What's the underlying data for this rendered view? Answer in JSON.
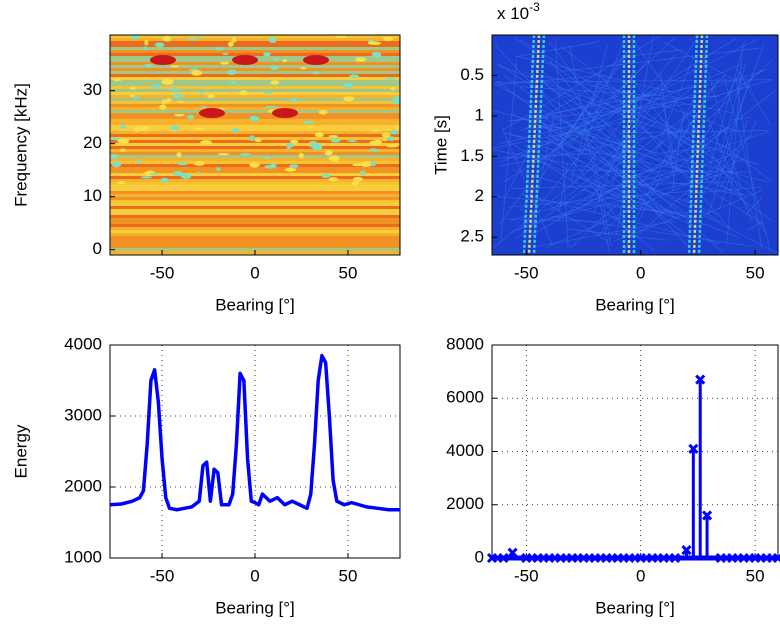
{
  "chart_data": [
    {
      "type": "heatmap",
      "xlabel": "Bearing [°]",
      "ylabel": "Frequency [kHz]",
      "xlim": [
        -78,
        78
      ],
      "ylim": [
        -1,
        40.5
      ],
      "xticks": [
        -50,
        0,
        50
      ],
      "yticks": [
        0,
        10,
        20,
        30
      ]
    },
    {
      "type": "heatmap",
      "xlabel": "Bearing [°]",
      "ylabel": "Time [s]",
      "y_multiplier": {
        "base": "x 10",
        "exponent": "-3"
      },
      "y_inverted": true,
      "xlim": [
        -65,
        60
      ],
      "ylim": [
        0,
        2.72
      ],
      "xticks": [
        -50,
        0,
        50
      ],
      "yticks": [
        0.5,
        1,
        1.5,
        2,
        2.5
      ]
    },
    {
      "type": "line",
      "xlabel": "Bearing [°]",
      "ylabel": "Energy",
      "grid": true,
      "color": "#0000ff",
      "xlim": [
        -78,
        78
      ],
      "ylim": [
        1000,
        4000
      ],
      "xticks": [
        -50,
        0,
        50
      ],
      "yticks": [
        1000,
        2000,
        3000,
        4000
      ],
      "x": [
        -78,
        -72,
        -66,
        -62,
        -60,
        -58,
        -56,
        -54,
        -52,
        -50,
        -48,
        -46,
        -42,
        -38,
        -34,
        -30,
        -28,
        -26,
        -24,
        -22,
        -20,
        -18,
        -14,
        -12,
        -10,
        -8,
        -6,
        -4,
        -2,
        0,
        2,
        4,
        6,
        8,
        12,
        16,
        20,
        24,
        28,
        30,
        32,
        34,
        36,
        38,
        40,
        42,
        44,
        48,
        52,
        56,
        60,
        66,
        72,
        78
      ],
      "values": [
        1750,
        1760,
        1800,
        1850,
        1950,
        2600,
        3500,
        3650,
        3200,
        2400,
        1850,
        1700,
        1680,
        1700,
        1720,
        1800,
        2300,
        2350,
        1800,
        2250,
        2200,
        1750,
        1750,
        1900,
        2600,
        3600,
        3500,
        2400,
        1800,
        1780,
        1750,
        1900,
        1850,
        1800,
        1850,
        1750,
        1800,
        1750,
        1700,
        1900,
        2600,
        3500,
        3850,
        3750,
        3000,
        2100,
        1800,
        1750,
        1780,
        1750,
        1720,
        1700,
        1680,
        1680
      ]
    },
    {
      "type": "stem",
      "xlabel": "Bearing [°]",
      "grid": true,
      "color": "#0000ff",
      "xlim": [
        -65,
        60
      ],
      "ylim": [
        0,
        8000
      ],
      "xticks": [
        -50,
        0,
        50
      ],
      "yticks": [
        0,
        2000,
        4000,
        6000,
        8000
      ],
      "x": [
        -65,
        -60,
        -56,
        -50,
        -45,
        -40,
        -35,
        -30,
        -25,
        -20,
        -15,
        -10,
        -5,
        0,
        5,
        10,
        15,
        20,
        23,
        26,
        29,
        35,
        40,
        45,
        50,
        55,
        60
      ],
      "values": [
        0,
        0,
        200,
        0,
        0,
        0,
        0,
        0,
        0,
        0,
        0,
        0,
        0,
        0,
        0,
        0,
        0,
        300,
        4100,
        6700,
        1600,
        0,
        0,
        0,
        0,
        0,
        0
      ]
    }
  ]
}
